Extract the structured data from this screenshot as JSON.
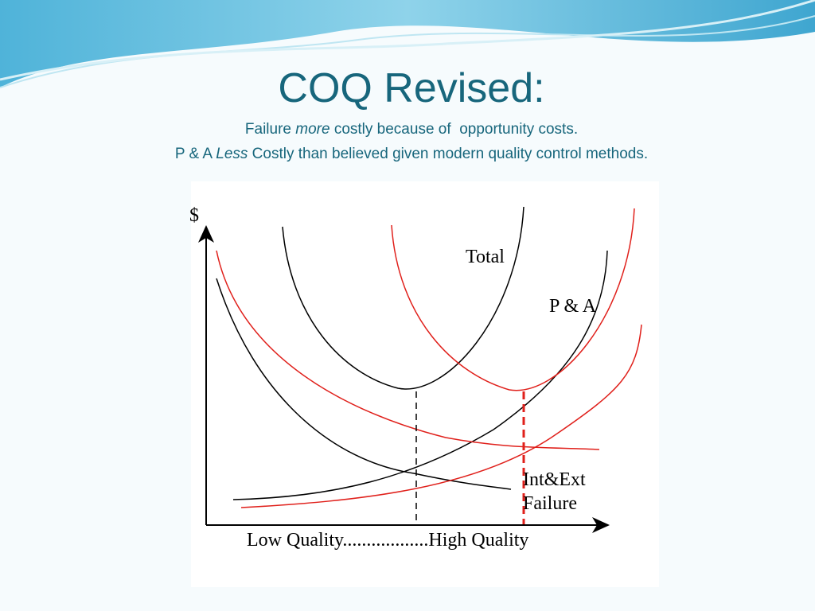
{
  "title": "COQ Revised:",
  "subtitle": [
    [
      "Failure ",
      "more",
      " costly because of  opportunity costs."
    ],
    [
      "P & A ",
      "Less",
      " Costly than believed given modern quality control methods."
    ]
  ],
  "diagram": {
    "y_axis_label": "$",
    "labels": [
      "Total",
      "P & A",
      "Int&Ext",
      "Failure"
    ],
    "x_axis_label": "Low Quality..................High Quality"
  }
}
